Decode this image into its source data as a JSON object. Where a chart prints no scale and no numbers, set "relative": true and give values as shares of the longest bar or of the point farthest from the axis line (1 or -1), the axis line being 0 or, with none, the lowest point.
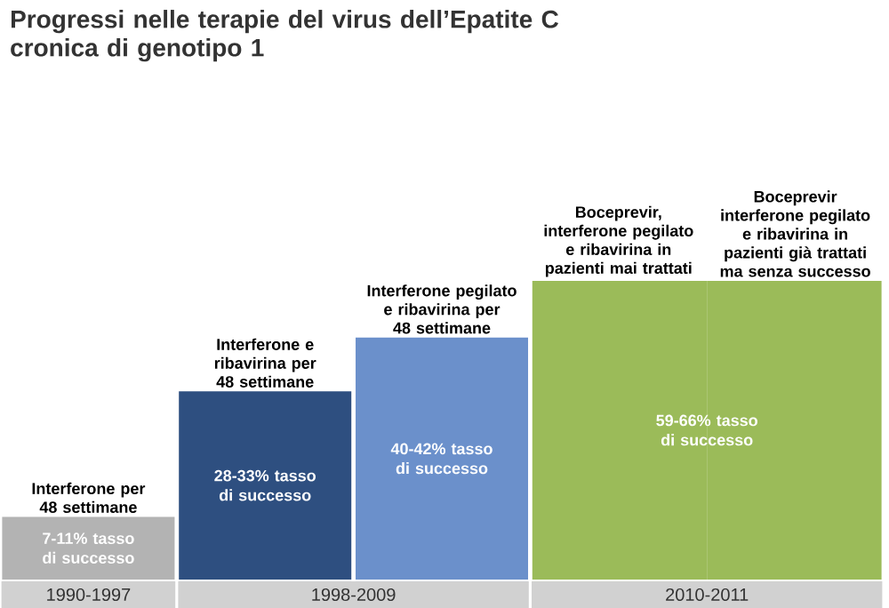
{
  "chart_data": {
    "type": "bar",
    "relative": true,
    "title": "Progressi nelle terapie del virus dell’Epatite C cronica di genotipo 1",
    "categories": [
      "Interferone per 48 settimane",
      "Interferone e ribavirina per 48 settimane",
      "Interferone pegilato e ribavirina per 48 settimane",
      "Boceprevir, interferone pegilato e ribavirina in pazienti mai trattati",
      "Boceprevir interferone pegilato e ribavirina in pazienti già trattati ma senza successo"
    ],
    "values": [
      0.21,
      0.63,
      0.81,
      1,
      1
    ],
    "colors": [
      "#b3b3b3",
      "#2e4f80",
      "#6b90cb",
      "#9bbb59",
      "#9bbb59"
    ],
    "annotations": [
      "7-11% tasso di successo",
      "28-33% tasso di successo",
      "40-42% tasso di successo",
      "59-66% tasso di successo",
      "1990-1997",
      "1998-2009",
      "2010-2011"
    ]
  }
}
